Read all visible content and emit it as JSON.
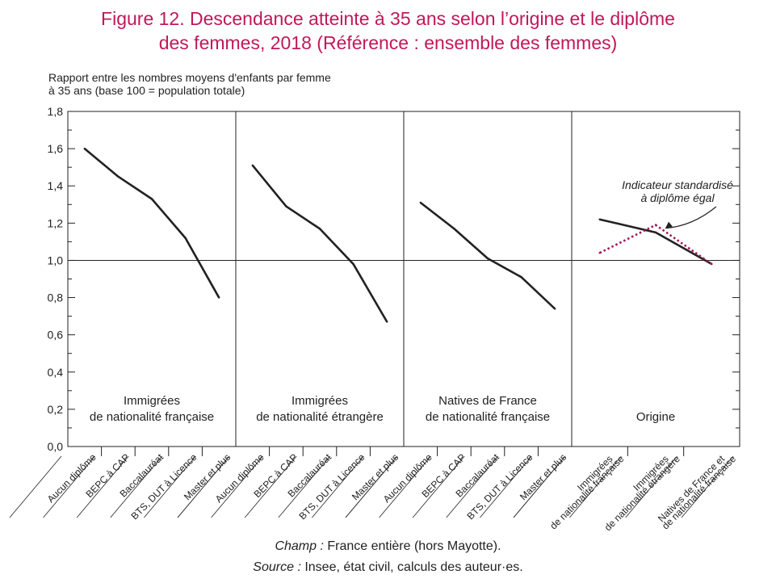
{
  "title": {
    "line1": "Figure 12. Descendance atteinte à 35 ans selon l’origine et le diplôme",
    "line2": "des femmes, 2018 (Référence : ensemble des femmes)"
  },
  "y_axis_label": {
    "line1": "Rapport entre les nombres moyens d'enfants par femme",
    "line2": "à 35 ans (base 100 = population totale)"
  },
  "footer": {
    "champ_label": "Champ :",
    "champ_text": " France entière (hors Mayotte).",
    "source_label": "Source :",
    "source_text": " Insee, état civil, calculs des auteur·es."
  },
  "colors": {
    "line": "#222222",
    "dotted": "#a0185a",
    "title": "#c0185a"
  },
  "chart_data": {
    "type": "line",
    "ylim": [
      0,
      1.8
    ],
    "yticks": [
      "0,0",
      "0,2",
      "0,4",
      "0,6",
      "0,8",
      "1,0",
      "1,2",
      "1,4",
      "1,6",
      "1,8"
    ],
    "reference_line": 1.0,
    "panels": [
      {
        "label_line1": "Immigrées",
        "label_line2": "de nationalité française",
        "categories": [
          "Aucun diplôme",
          "BEPC à CAP",
          "Baccalauréat",
          "BTS, DUT à Licence",
          "Master et plus"
        ],
        "values": [
          1.6,
          1.45,
          1.33,
          1.12,
          0.8
        ]
      },
      {
        "label_line1": "Immigrées",
        "label_line2": "de nationalité étrangère",
        "categories": [
          "Aucun diplôme",
          "BEPC à CAP",
          "Baccalauréat",
          "BTS, DUT à Licence",
          "Master et plus"
        ],
        "values": [
          1.51,
          1.29,
          1.17,
          0.98,
          0.67
        ]
      },
      {
        "label_line1": "Natives de France",
        "label_line2": "de nationalité française",
        "categories": [
          "Aucun diplôme",
          "BEPC à CAP",
          "Baccalauréat",
          "BTS, DUT à Licence",
          "Master et plus"
        ],
        "values": [
          1.31,
          1.17,
          1.01,
          0.91,
          0.74
        ]
      },
      {
        "label_line1": "",
        "label_line2": "Origine",
        "categories": [
          "Immigrées de nationalité française",
          "Immigrées de nationalité étrangère",
          "Natives de France et de nationalité française"
        ],
        "category_lines": [
          [
            "Immigrées",
            "de nationalité française"
          ],
          [
            "Immigrées",
            "de nationalité étrangère"
          ],
          [
            "Natives de France et",
            "de nationalité française"
          ]
        ],
        "values": [
          1.22,
          1.15,
          0.98
        ],
        "standardized": [
          1.04,
          1.19,
          0.98
        ],
        "annotation_line1": "Indicateur standardisé",
        "annotation_line2": "à diplôme égal"
      }
    ]
  }
}
